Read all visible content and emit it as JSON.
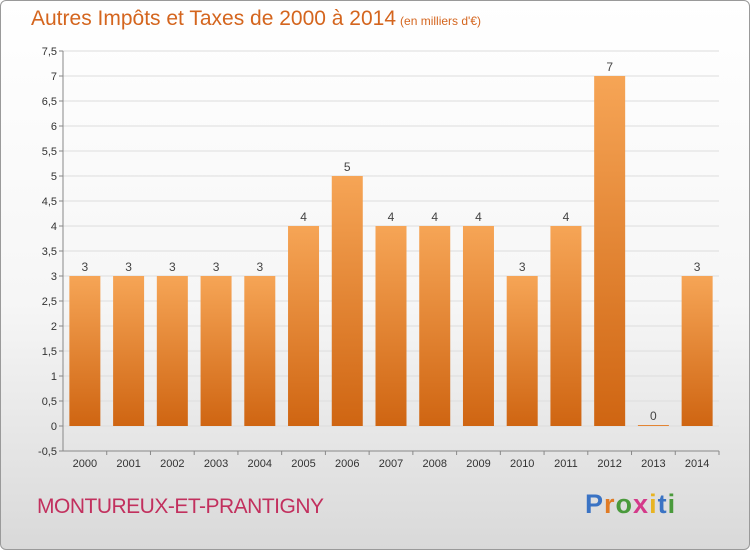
{
  "header": {
    "title": "Autres Impôts et Taxes de 2000 à 2014",
    "subtitle": "(en milliers d'€)"
  },
  "footer": {
    "commune": "MONTUREUX-ET-PRANTIGNY",
    "logo_letters": [
      "P",
      "r",
      "o",
      "x",
      "i",
      "t",
      "i"
    ],
    "logo_colors": [
      "#3a73c4",
      "#e07b25",
      "#4a9a3c",
      "#d43a8a",
      "#e8b422",
      "#3a73c4",
      "#4a9a3c"
    ]
  },
  "chart_data": {
    "type": "bar",
    "title": "Autres Impôts et Taxes de 2000 à 2014",
    "subtitle": "(en milliers d'€)",
    "categories": [
      "2000",
      "2001",
      "2002",
      "2003",
      "2004",
      "2005",
      "2006",
      "2007",
      "2008",
      "2009",
      "2010",
      "2011",
      "2012",
      "2013",
      "2014"
    ],
    "values": [
      3,
      3,
      3,
      3,
      3,
      4,
      5,
      4,
      4,
      4,
      3,
      4,
      7,
      0,
      3
    ],
    "data_labels": [
      "3",
      "3",
      "3",
      "3",
      "3",
      "4",
      "5",
      "4",
      "4",
      "4",
      "3",
      "4",
      "7",
      "0",
      "3"
    ],
    "yticks": [
      "-0,5",
      "0",
      "0,5",
      "1",
      "1,5",
      "2",
      "2,5",
      "3",
      "3,5",
      "4",
      "4,5",
      "5",
      "5,5",
      "6",
      "6,5",
      "7",
      "7,5"
    ],
    "ylim": [
      -0.5,
      7.5
    ],
    "grid": "horizontal",
    "colors": {
      "bar_top": "#f6a556",
      "bar_bottom": "#cf6512",
      "grid": "#dddddd",
      "axis": "#888888"
    }
  }
}
